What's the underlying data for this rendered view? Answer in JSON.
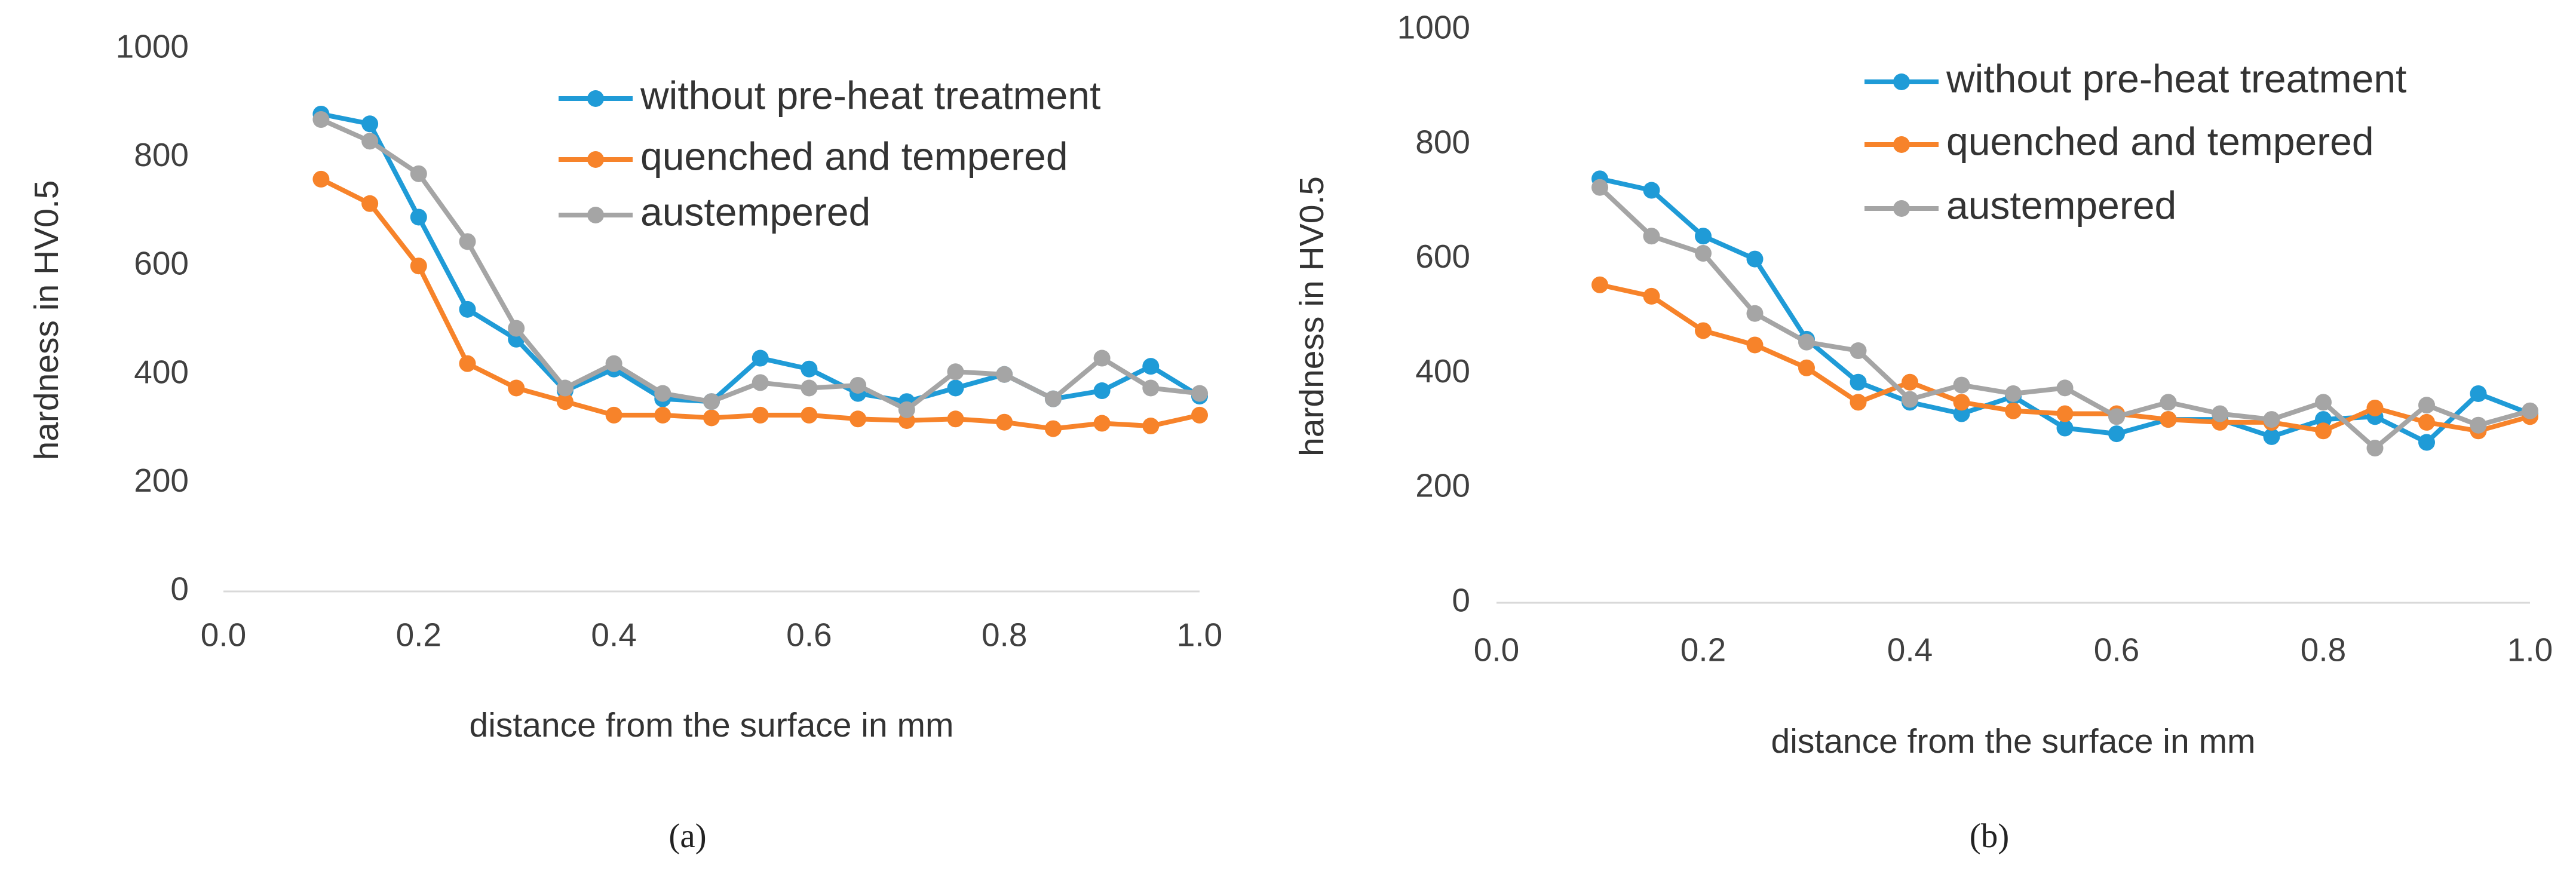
{
  "chart_data": [
    {
      "type": "line",
      "panel_label": "(a)",
      "x_label": "distance from the surface in mm",
      "y_label": "hardness in HV0.5",
      "x": [
        0.1,
        0.15,
        0.2,
        0.25,
        0.3,
        0.35,
        0.4,
        0.45,
        0.5,
        0.55,
        0.6,
        0.65,
        0.7,
        0.75,
        0.8,
        0.85,
        0.9,
        0.95,
        1.0
      ],
      "xlim": [
        0,
        1
      ],
      "xticks": [
        {
          "value": 0,
          "label": "0.0"
        },
        0.2,
        0.4,
        0.6,
        0.8,
        {
          "value": 1,
          "label": "1.0"
        }
      ],
      "ylim": [
        0,
        1000
      ],
      "yticks": [
        0,
        200,
        400,
        600,
        800,
        1000
      ],
      "series": [
        {
          "name": "without pre-heat treatment",
          "color": "#1f9bd7",
          "values": [
            880,
            862,
            690,
            520,
            465,
            370,
            410,
            355,
            350,
            430,
            410,
            365,
            350,
            375,
            400,
            355,
            370,
            415,
            360
          ]
        },
        {
          "name": "quenched and tempered",
          "color": "#f7832a",
          "values": [
            760,
            715,
            600,
            420,
            375,
            350,
            325,
            325,
            320,
            325,
            325,
            318,
            315,
            318,
            312,
            300,
            310,
            305,
            325
          ]
        },
        {
          "name": "austempered",
          "color": "#a5a5a5",
          "values": [
            870,
            830,
            770,
            645,
            485,
            375,
            420,
            365,
            350,
            385,
            375,
            380,
            335,
            405,
            400,
            355,
            430,
            375,
            365
          ]
        }
      ]
    },
    {
      "type": "line",
      "panel_label": "(b)",
      "x_label": "distance from the surface in mm",
      "y_label": "hardness in HV0.5",
      "x": [
        0.1,
        0.15,
        0.2,
        0.25,
        0.3,
        0.35,
        0.4,
        0.45,
        0.5,
        0.55,
        0.6,
        0.65,
        0.7,
        0.75,
        0.8,
        0.85,
        0.9,
        0.95,
        1.0
      ],
      "xlim": [
        0,
        1
      ],
      "xticks": [
        {
          "value": 0,
          "label": "0.0"
        },
        0.2,
        0.4,
        0.6,
        0.8,
        {
          "value": 1,
          "label": "1.0"
        }
      ],
      "ylim": [
        0,
        1000
      ],
      "yticks": [
        0,
        200,
        400,
        600,
        800,
        1000
      ],
      "series": [
        {
          "name": "without pre-heat treatment",
          "color": "#1f9bd7",
          "values": [
            740,
            720,
            640,
            600,
            460,
            385,
            350,
            330,
            360,
            305,
            295,
            320,
            320,
            290,
            320,
            325,
            280,
            365,
            330
          ]
        },
        {
          "name": "quenched and tempered",
          "color": "#f7832a",
          "values": [
            555,
            535,
            475,
            450,
            410,
            350,
            385,
            350,
            335,
            330,
            330,
            320,
            315,
            315,
            300,
            340,
            315,
            300,
            325
          ]
        },
        {
          "name": "austempered",
          "color": "#a5a5a5",
          "values": [
            725,
            640,
            610,
            505,
            455,
            440,
            355,
            380,
            365,
            375,
            325,
            350,
            330,
            320,
            350,
            270,
            345,
            310,
            335
          ]
        }
      ]
    }
  ]
}
